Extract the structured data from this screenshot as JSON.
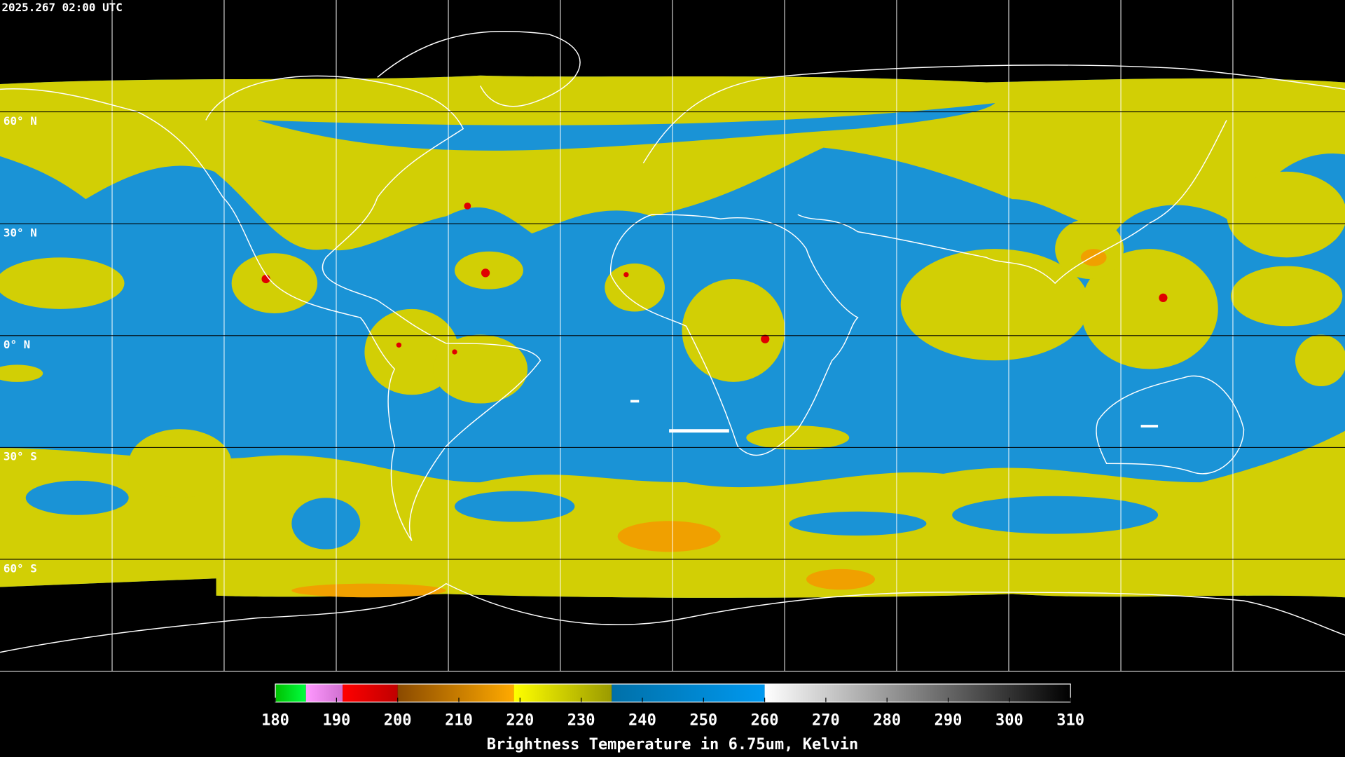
{
  "map": {
    "timestamp": "2025.267 02:00 UTC",
    "latitudes": [
      {
        "value": 60,
        "label": "60° N"
      },
      {
        "value": 30,
        "label": "30° N"
      },
      {
        "value": 0,
        "label": "0° N"
      },
      {
        "value": -30,
        "label": "30° S"
      },
      {
        "value": -60,
        "label": "60° S"
      }
    ],
    "lat_range": [
      90,
      -90
    ]
  },
  "colorbar": {
    "title": "Brightness Temperature in 6.75um, Kelvin",
    "range": [
      180,
      310
    ],
    "ticks": [
      180,
      190,
      200,
      210,
      220,
      230,
      240,
      250,
      260,
      270,
      280,
      290,
      300,
      310
    ],
    "segments": [
      {
        "from": 180,
        "to": 185,
        "colors": [
          "#00c000",
          "#00ff40"
        ]
      },
      {
        "from": 185,
        "to": 191,
        "colors": [
          "#ff99ff",
          "#d070d0"
        ]
      },
      {
        "from": 191,
        "to": 200,
        "colors": [
          "#ff0000",
          "#c00000"
        ]
      },
      {
        "from": 200,
        "to": 219,
        "colors": [
          "#8a4a00",
          "#ffaa00"
        ]
      },
      {
        "from": 219,
        "to": 235,
        "colors": [
          "#ffff00",
          "#9a9a00"
        ]
      },
      {
        "from": 235,
        "to": 260,
        "colors": [
          "#0070a8",
          "#0099f0"
        ]
      },
      {
        "from": 260,
        "to": 310,
        "colors": [
          "#ffffff",
          "#000000"
        ]
      }
    ]
  }
}
